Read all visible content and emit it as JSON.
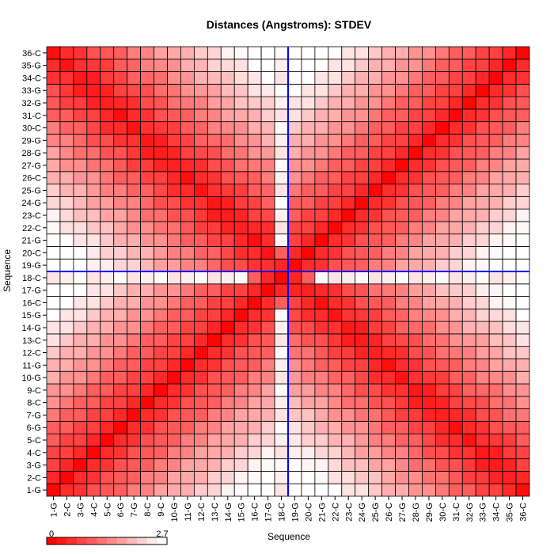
{
  "chart_data": {
    "type": "heatmap",
    "title": "Distances (Angstroms):  STDEV",
    "xlabel": "Sequence",
    "ylabel": "Sequence",
    "sequence": [
      "1-G",
      "2-C",
      "3-G",
      "4-C",
      "5-C",
      "6-G",
      "7-G",
      "8-C",
      "9-C",
      "10-G",
      "11-G",
      "12-C",
      "13-C",
      "14-G",
      "15-G",
      "16-C",
      "17-G",
      "18-C",
      "19-G",
      "20-C",
      "21-G",
      "22-C",
      "23-C",
      "24-G",
      "25-G",
      "26-C",
      "27-G",
      "28-G",
      "29-G",
      "30-C",
      "31-C",
      "32-G",
      "33-G",
      "34-C",
      "35-G",
      "36-C"
    ],
    "colorbar": {
      "min": "0",
      "max": "2.7",
      "min_value": 0,
      "max_value": 2.7,
      "low_color": "#ff0000",
      "high_color": "#ffffff"
    },
    "highlight": {
      "residue": "18-C",
      "line_color": "#0000ff"
    },
    "grid": true
  }
}
